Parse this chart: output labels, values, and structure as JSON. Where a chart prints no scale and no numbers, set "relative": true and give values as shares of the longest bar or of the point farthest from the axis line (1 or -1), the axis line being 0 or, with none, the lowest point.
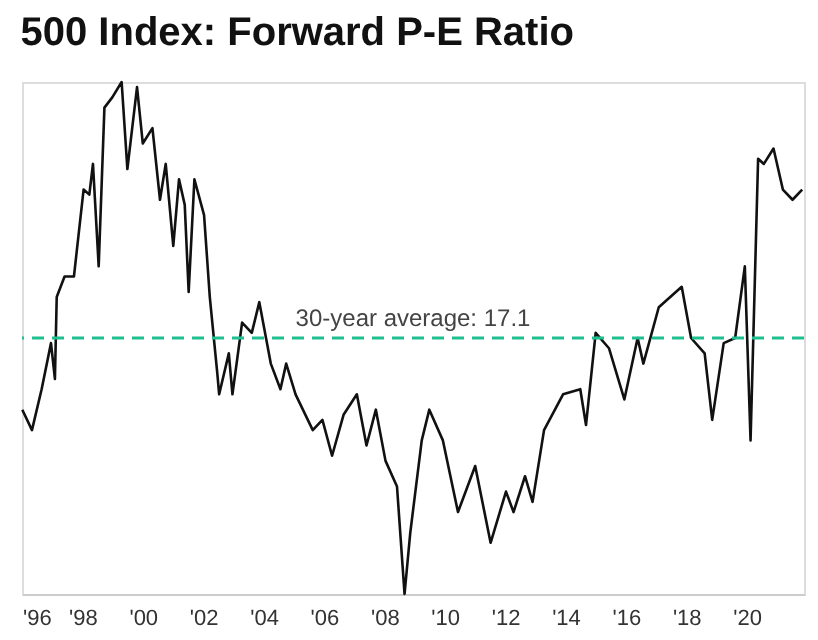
{
  "chart_data": {
    "type": "line",
    "title": "500 Index: Forward P-E Ratio",
    "relative": true,
    "tick_labels": "x",
    "marker": "none",
    "line_style": "solid",
    "xlim": [
      1996.0,
      2021.9
    ],
    "xticks": [
      {
        "value": 1996,
        "label": "'96"
      },
      {
        "value": 1998,
        "label": "'98"
      },
      {
        "value": 2000,
        "label": "'00"
      },
      {
        "value": 2002,
        "label": "'02"
      },
      {
        "value": 2004,
        "label": "'04"
      },
      {
        "value": 2006,
        "label": "'06"
      },
      {
        "value": 2008,
        "label": "'08"
      },
      {
        "value": 2010,
        "label": "'10"
      },
      {
        "value": 2012,
        "label": "'12"
      },
      {
        "value": 2014,
        "label": "'14"
      },
      {
        "value": 2016,
        "label": "'16"
      },
      {
        "value": 2018,
        "label": "'18"
      },
      {
        "value": 2020,
        "label": "'20"
      }
    ],
    "x": [
      1996.01,
      1996.33,
      1996.65,
      1996.96,
      1997.09,
      1997.15,
      1997.41,
      1997.72,
      1998.04,
      1998.23,
      1998.35,
      1998.54,
      1998.73,
      1998.99,
      1999.3,
      1999.49,
      1999.81,
      2000.0,
      2000.32,
      2000.57,
      2000.76,
      2001.01,
      2001.2,
      2001.39,
      2001.52,
      2001.71,
      2002.03,
      2002.22,
      2002.47,
      2002.53,
      2002.85,
      2002.97,
      2003.29,
      2003.61,
      2003.86,
      2004.24,
      2004.56,
      2004.75,
      2005.06,
      2005.63,
      2005.95,
      2006.27,
      2006.65,
      2007.09,
      2007.41,
      2007.72,
      2008.04,
      2008.42,
      2008.67,
      2008.86,
      2009.24,
      2009.49,
      2009.94,
      2010.44,
      2011.01,
      2011.52,
      2012.03,
      2012.28,
      2012.66,
      2012.91,
      2013.29,
      2013.92,
      2014.49,
      2014.68,
      2015.0,
      2015.44,
      2015.95,
      2016.39,
      2016.58,
      2017.09,
      2017.85,
      2018.16,
      2018.61,
      2018.86,
      2019.24,
      2019.62,
      2019.94,
      2020.13,
      2020.38,
      2020.57,
      2020.89,
      2021.2,
      2021.52,
      2021.84
    ],
    "series": [
      {
        "color": "#111111",
        "values": [
          0.36,
          0.32,
          0.4,
          0.49,
          0.42,
          0.58,
          0.62,
          0.62,
          0.79,
          0.78,
          0.84,
          0.64,
          0.95,
          0.97,
          1.0,
          0.83,
          0.99,
          0.88,
          0.91,
          0.77,
          0.84,
          0.68,
          0.81,
          0.76,
          0.59,
          0.81,
          0.74,
          0.58,
          0.43,
          0.39,
          0.47,
          0.39,
          0.53,
          0.51,
          0.57,
          0.45,
          0.4,
          0.45,
          0.39,
          0.32,
          0.34,
          0.27,
          0.35,
          0.39,
          0.29,
          0.36,
          0.26,
          0.21,
          0,
          0.12,
          0.3,
          0.36,
          0.3,
          0.16,
          0.25,
          0.1,
          0.2,
          0.16,
          0.23,
          0.18,
          0.32,
          0.39,
          0.4,
          0.33,
          0.51,
          0.48,
          0.38,
          0.5,
          0.45,
          0.56,
          0.6,
          0.5,
          0.47,
          0.34,
          0.49,
          0.5,
          0.64,
          0.3,
          0.85,
          0.84,
          0.87,
          0.79,
          0.77,
          0.79
        ]
      }
    ],
    "ref_lines": [
      {
        "axis": "y",
        "value": 0.5,
        "color": "#1fbf8f",
        "line_style": "dashed"
      }
    ],
    "annotations": [
      "30-year average: 17.1"
    ]
  }
}
